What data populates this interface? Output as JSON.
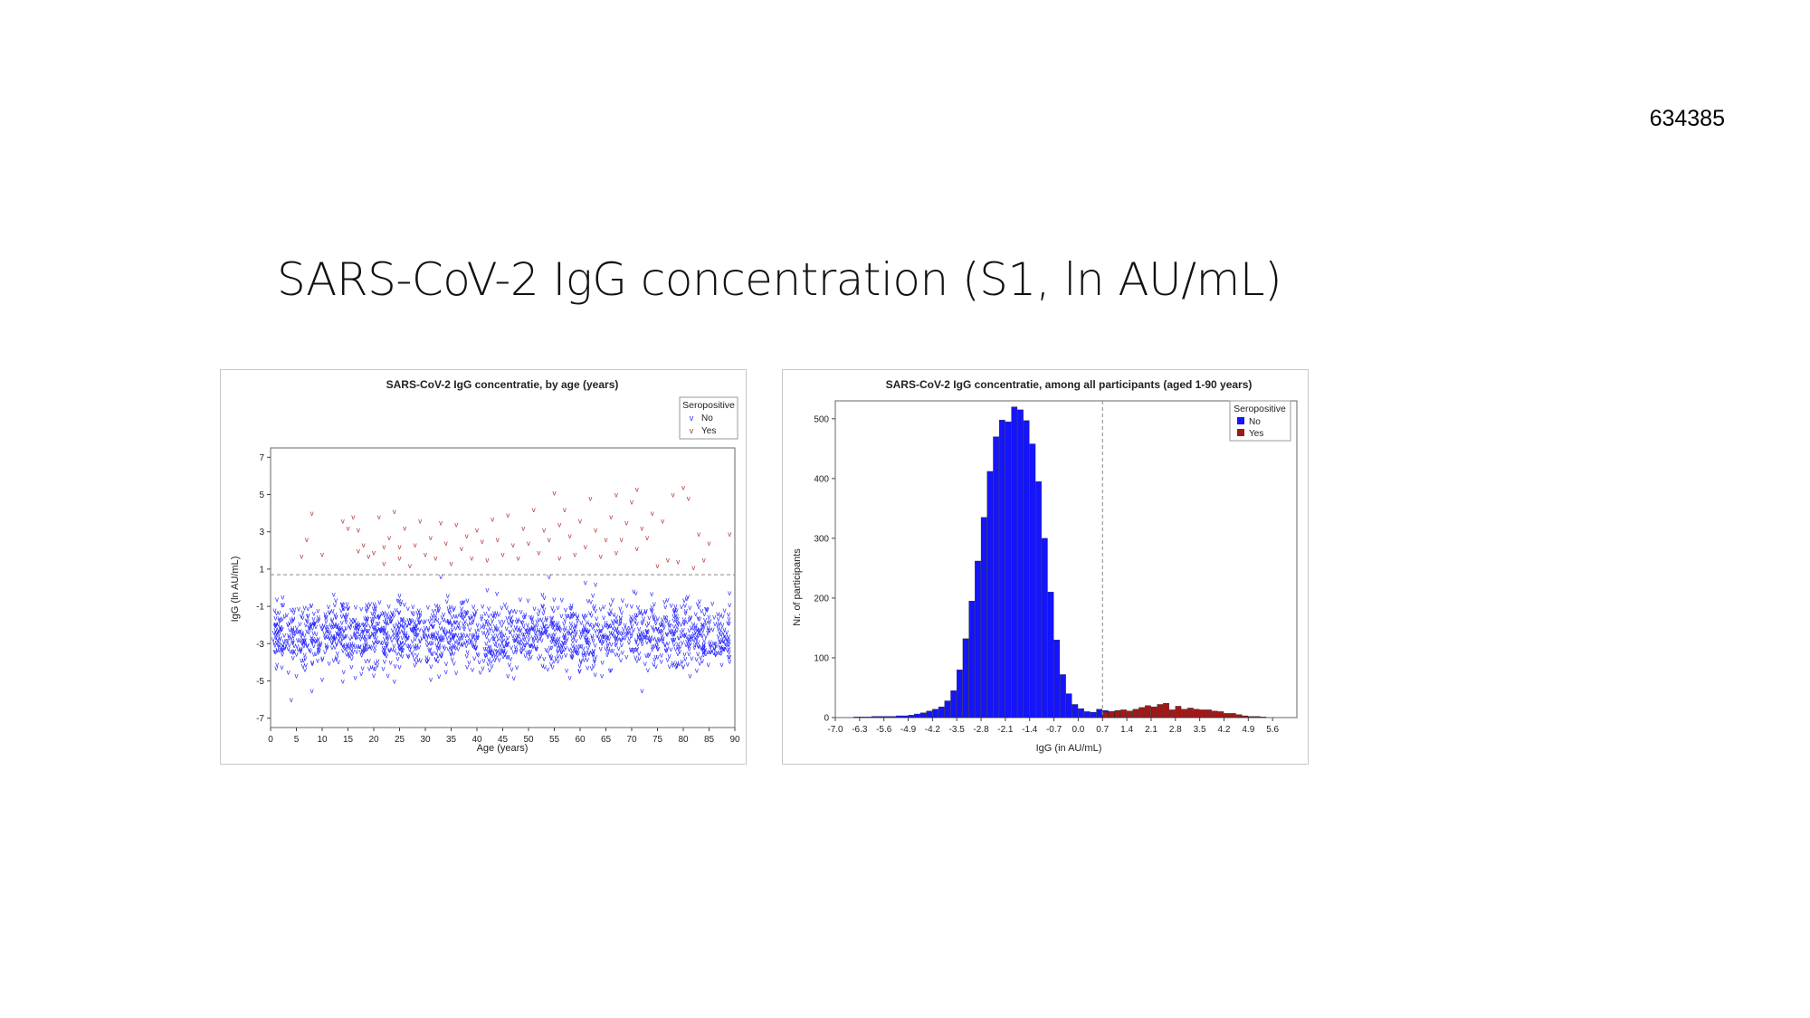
{
  "page": {
    "id": "634385",
    "title": "SARS-CoV-2 IgG concentration (S1, ln AU/mL)"
  },
  "chart_data": [
    {
      "type": "scatter",
      "title": "SARS-CoV-2 IgG concentratie, by age (years)",
      "xlabel": "Age (years)",
      "ylabel": "IgG (ln AU/mL)",
      "xlim": [
        0,
        90
      ],
      "ylim": [
        -7.5,
        7.5
      ],
      "xticks": [
        0,
        5,
        10,
        15,
        20,
        25,
        30,
        35,
        40,
        45,
        50,
        55,
        60,
        65,
        70,
        75,
        80,
        85,
        90
      ],
      "yticks": [
        -7,
        -5,
        -3,
        -1,
        1,
        3,
        5,
        7
      ],
      "cutoff": 0.7,
      "legend": {
        "title": "Seropositive",
        "position": "top-right"
      },
      "marker": "v",
      "series": [
        {
          "name": "No",
          "color": "#2a2aff",
          "band_summary": {
            "x": [
              0,
              90
            ],
            "y_center": -2.5,
            "y_spread": 1.2
          },
          "points": [
            [
              1,
              -2.5
            ],
            [
              3,
              -3
            ],
            [
              4,
              -6
            ],
            [
              5,
              -4.7
            ],
            [
              8,
              -5.5
            ],
            [
              10,
              -4.9
            ],
            [
              14,
              -5
            ],
            [
              20,
              -4.3
            ],
            [
              24,
              -5
            ],
            [
              34,
              -4.5
            ],
            [
              46,
              -4.7
            ],
            [
              58,
              -4.8
            ],
            [
              66,
              -4.4
            ],
            [
              72,
              -5.5
            ],
            [
              80,
              -4.2
            ],
            [
              86,
              -3.2
            ],
            [
              89,
              -3.7
            ],
            [
              88,
              -1.2
            ],
            [
              89,
              -0.9
            ],
            [
              83,
              -1
            ],
            [
              63,
              0.2
            ],
            [
              61,
              0.3
            ],
            [
              54,
              0.6
            ],
            [
              33,
              0.6
            ],
            [
              25,
              -0.4
            ],
            [
              42,
              -0.1
            ]
          ]
        },
        {
          "name": "Yes",
          "color": "#b03030",
          "points": [
            [
              7,
              2.6
            ],
            [
              8,
              4
            ],
            [
              6,
              1.7
            ],
            [
              10,
              1.8
            ],
            [
              14,
              3.6
            ],
            [
              15,
              3.2
            ],
            [
              16,
              3.8
            ],
            [
              17,
              3.1
            ],
            [
              17,
              2
            ],
            [
              18,
              2.3
            ],
            [
              19,
              1.7
            ],
            [
              20,
              1.9
            ],
            [
              21,
              3.8
            ],
            [
              22,
              2.2
            ],
            [
              22,
              1.3
            ],
            [
              23,
              2.7
            ],
            [
              24,
              4.1
            ],
            [
              25,
              2.2
            ],
            [
              25,
              1.6
            ],
            [
              26,
              3.2
            ],
            [
              27,
              1.2
            ],
            [
              28,
              2.3
            ],
            [
              29,
              3.6
            ],
            [
              30,
              1.8
            ],
            [
              31,
              2.7
            ],
            [
              32,
              1.6
            ],
            [
              33,
              3.5
            ],
            [
              34,
              2.4
            ],
            [
              35,
              1.3
            ],
            [
              36,
              3.4
            ],
            [
              37,
              2.1
            ],
            [
              38,
              2.8
            ],
            [
              39,
              1.6
            ],
            [
              40,
              3.1
            ],
            [
              41,
              2.5
            ],
            [
              42,
              1.5
            ],
            [
              43,
              3.7
            ],
            [
              44,
              2.6
            ],
            [
              45,
              1.8
            ],
            [
              46,
              3.9
            ],
            [
              47,
              2.3
            ],
            [
              48,
              1.6
            ],
            [
              49,
              3.2
            ],
            [
              50,
              2.4
            ],
            [
              51,
              4.2
            ],
            [
              52,
              1.9
            ],
            [
              53,
              3.1
            ],
            [
              54,
              2.6
            ],
            [
              55,
              5.1
            ],
            [
              56,
              3.4
            ],
            [
              56,
              1.6
            ],
            [
              57,
              4.2
            ],
            [
              58,
              2.8
            ],
            [
              59,
              1.8
            ],
            [
              60,
              3.6
            ],
            [
              61,
              2.2
            ],
            [
              62,
              4.8
            ],
            [
              63,
              3.1
            ],
            [
              64,
              1.7
            ],
            [
              65,
              2.6
            ],
            [
              66,
              3.8
            ],
            [
              67,
              5
            ],
            [
              67,
              1.9
            ],
            [
              68,
              2.6
            ],
            [
              69,
              3.5
            ],
            [
              70,
              4.6
            ],
            [
              71,
              5.3
            ],
            [
              71,
              2.1
            ],
            [
              72,
              3.2
            ],
            [
              73,
              2.7
            ],
            [
              74,
              4
            ],
            [
              75,
              1.2
            ],
            [
              76,
              3.6
            ],
            [
              77,
              1.5
            ],
            [
              78,
              5
            ],
            [
              79,
              1.4
            ],
            [
              80,
              5.4
            ],
            [
              81,
              4.8
            ],
            [
              82,
              1.1
            ],
            [
              83,
              2.9
            ],
            [
              84,
              1.5
            ],
            [
              85,
              2.4
            ],
            [
              89,
              2.9
            ]
          ]
        }
      ]
    },
    {
      "type": "bar",
      "title": "SARS-CoV-2 IgG concentratie, among all participants (aged 1-90 years)",
      "xlabel": "IgG (in AU/mL)",
      "ylabel": "Nr. of participants",
      "xlim": [
        -7.0,
        6.3
      ],
      "ylim": [
        0,
        530
      ],
      "xticks": [
        "-7.0",
        "-6.3",
        "-5.6",
        "-4.9",
        "-4.2",
        "-3.5",
        "-2.8",
        "-2.1",
        "-1.4",
        "-0.7",
        "0.0",
        "0.7",
        "1.4",
        "2.1",
        "2.8",
        "3.5",
        "4.2",
        "4.9",
        "5.6"
      ],
      "yticks": [
        0,
        100,
        200,
        300,
        400,
        500
      ],
      "cutoff": 0.7,
      "bin_width": 0.175,
      "legend": {
        "title": "Seropositive",
        "position": "top-right"
      },
      "series": [
        {
          "name": "No",
          "color": "#1414ff",
          "bin_start": -6.475,
          "values": [
            1,
            1,
            1,
            2,
            2,
            2,
            2,
            3,
            3,
            4,
            6,
            8,
            11,
            14,
            18,
            28,
            45,
            80,
            132,
            195,
            262,
            335,
            412,
            470,
            498,
            495,
            520,
            515,
            497,
            458,
            395,
            300,
            210,
            130,
            72,
            40,
            22,
            15,
            10,
            9,
            14,
            12,
            10,
            11
          ]
        },
        {
          "name": "Yes",
          "color": "#a01818",
          "bin_start": 0.7,
          "values": [
            9,
            10,
            12,
            13,
            11,
            14,
            17,
            20,
            18,
            22,
            24,
            13,
            19,
            14,
            16,
            14,
            13,
            13,
            11,
            10,
            7,
            7,
            5,
            3,
            2,
            2,
            1
          ]
        }
      ]
    }
  ]
}
